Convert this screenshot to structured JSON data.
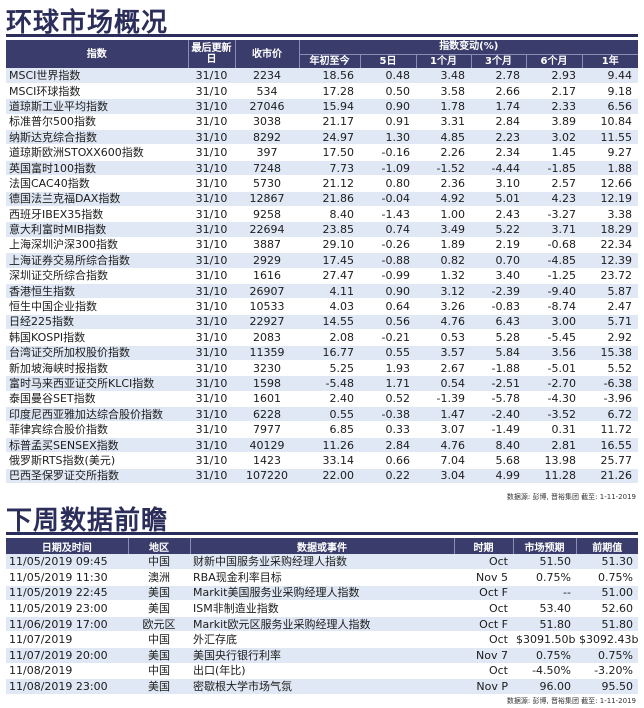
{
  "markets": {
    "title": "环球市场概况",
    "headers": {
      "index": "指数",
      "last_update": "最后更新日",
      "close": "收市价",
      "change_group": "指数变动(%)",
      "ytd": "年初至今",
      "d5": "5日",
      "m1": "1个月",
      "m3": "3个月",
      "m6": "6个月",
      "y1": "1年"
    },
    "rows": [
      {
        "name": "MSCI世界指数",
        "date": "31/10",
        "close": "2234",
        "ytd": "18.56",
        "d5": "0.48",
        "m1": "3.48",
        "m3": "2.78",
        "m6": "2.93",
        "y1": "9.44"
      },
      {
        "name": "MSCI环球指数",
        "date": "31/10",
        "close": "534",
        "ytd": "17.28",
        "d5": "0.50",
        "m1": "3.58",
        "m3": "2.66",
        "m6": "2.17",
        "y1": "9.18"
      },
      {
        "name": "道琼斯工业平均指数",
        "date": "31/10",
        "close": "27046",
        "ytd": "15.94",
        "d5": "0.90",
        "m1": "1.78",
        "m3": "1.74",
        "m6": "2.33",
        "y1": "6.56"
      },
      {
        "name": "标准普尔500指数",
        "date": "31/10",
        "close": "3038",
        "ytd": "21.17",
        "d5": "0.91",
        "m1": "3.31",
        "m3": "2.84",
        "m6": "3.89",
        "y1": "10.84"
      },
      {
        "name": "纳斯达克综合指数",
        "date": "31/10",
        "close": "8292",
        "ytd": "24.97",
        "d5": "1.30",
        "m1": "4.85",
        "m3": "2.23",
        "m6": "3.02",
        "y1": "11.55"
      },
      {
        "name": "道琼斯欧洲STOXX600指数",
        "date": "31/10",
        "close": "397",
        "ytd": "17.50",
        "d5": "-0.16",
        "m1": "2.26",
        "m3": "2.34",
        "m6": "1.45",
        "y1": "9.27"
      },
      {
        "name": "英国富时100指数",
        "date": "31/10",
        "close": "7248",
        "ytd": "7.73",
        "d5": "-1.09",
        "m1": "-1.52",
        "m3": "-4.44",
        "m6": "-1.85",
        "y1": "1.88"
      },
      {
        "name": "法国CAC40指数",
        "date": "31/10",
        "close": "5730",
        "ytd": "21.12",
        "d5": "0.80",
        "m1": "2.36",
        "m3": "3.10",
        "m6": "2.57",
        "y1": "12.66"
      },
      {
        "name": "德国法兰克福DAX指数",
        "date": "31/10",
        "close": "12867",
        "ytd": "21.86",
        "d5": "-0.04",
        "m1": "4.92",
        "m3": "5.01",
        "m6": "4.23",
        "y1": "12.19"
      },
      {
        "name": "西班牙IBEX35指数",
        "date": "31/10",
        "close": "9258",
        "ytd": "8.40",
        "d5": "-1.43",
        "m1": "1.00",
        "m3": "2.43",
        "m6": "-3.27",
        "y1": "3.38"
      },
      {
        "name": "意大利富时MIB指数",
        "date": "31/10",
        "close": "22694",
        "ytd": "23.85",
        "d5": "0.74",
        "m1": "3.49",
        "m3": "5.22",
        "m6": "3.71",
        "y1": "18.29"
      },
      {
        "name": "上海深圳沪深300指数",
        "date": "31/10",
        "close": "3887",
        "ytd": "29.10",
        "d5": "-0.26",
        "m1": "1.89",
        "m3": "2.19",
        "m6": "-0.68",
        "y1": "22.34"
      },
      {
        "name": "上海证券交易所综合指数",
        "date": "31/10",
        "close": "2929",
        "ytd": "17.45",
        "d5": "-0.88",
        "m1": "0.82",
        "m3": "0.70",
        "m6": "-4.85",
        "y1": "12.39"
      },
      {
        "name": "深圳证交所综合指数",
        "date": "31/10",
        "close": "1616",
        "ytd": "27.47",
        "d5": "-0.99",
        "m1": "1.32",
        "m3": "3.40",
        "m6": "-1.25",
        "y1": "23.72"
      },
      {
        "name": "香港恒生指数",
        "date": "31/10",
        "close": "26907",
        "ytd": "4.11",
        "d5": "0.90",
        "m1": "3.12",
        "m3": "-2.39",
        "m6": "-9.40",
        "y1": "5.87"
      },
      {
        "name": "恒生中国企业指数",
        "date": "31/10",
        "close": "10533",
        "ytd": "4.03",
        "d5": "0.64",
        "m1": "3.26",
        "m3": "-0.83",
        "m6": "-8.74",
        "y1": "2.47"
      },
      {
        "name": "日经225指数",
        "date": "31/10",
        "close": "22927",
        "ytd": "14.55",
        "d5": "0.56",
        "m1": "4.76",
        "m3": "6.43",
        "m6": "3.00",
        "y1": "5.71"
      },
      {
        "name": "韩国KOSPI指数",
        "date": "31/10",
        "close": "2083",
        "ytd": "2.08",
        "d5": "-0.21",
        "m1": "0.53",
        "m3": "5.28",
        "m6": "-5.45",
        "y1": "2.92"
      },
      {
        "name": "台湾证交所加权股价指数",
        "date": "31/10",
        "close": "11359",
        "ytd": "16.77",
        "d5": "0.55",
        "m1": "3.57",
        "m3": "5.84",
        "m6": "3.56",
        "y1": "15.38"
      },
      {
        "name": "新加坡海峡时报指数",
        "date": "31/10",
        "close": "3230",
        "ytd": "5.25",
        "d5": "1.93",
        "m1": "2.67",
        "m3": "-1.88",
        "m6": "-5.01",
        "y1": "5.52"
      },
      {
        "name": "富时马来西亚证交所KLCI指数",
        "date": "31/10",
        "close": "1598",
        "ytd": "-5.48",
        "d5": "1.71",
        "m1": "0.54",
        "m3": "-2.51",
        "m6": "-2.70",
        "y1": "-6.38"
      },
      {
        "name": "泰国曼谷SET指数",
        "date": "31/10",
        "close": "1601",
        "ytd": "2.40",
        "d5": "0.52",
        "m1": "-1.39",
        "m3": "-5.78",
        "m6": "-4.30",
        "y1": "-3.96"
      },
      {
        "name": "印度尼西亚雅加达综合股价指数",
        "date": "31/10",
        "close": "6228",
        "ytd": "0.55",
        "d5": "-0.38",
        "m1": "1.47",
        "m3": "-2.40",
        "m6": "-3.52",
        "y1": "6.72"
      },
      {
        "name": "菲律宾综合股价指数",
        "date": "31/10",
        "close": "7977",
        "ytd": "6.85",
        "d5": "0.33",
        "m1": "3.07",
        "m3": "-1.49",
        "m6": "0.31",
        "y1": "11.72"
      },
      {
        "name": "标普孟买SENSEX指数",
        "date": "31/10",
        "close": "40129",
        "ytd": "11.26",
        "d5": "2.84",
        "m1": "4.76",
        "m3": "8.40",
        "m6": "2.81",
        "y1": "16.55"
      },
      {
        "name": "俄罗斯RTS指数(美元)",
        "date": "31/10",
        "close": "1423",
        "ytd": "33.14",
        "d5": "0.66",
        "m1": "7.04",
        "m3": "5.68",
        "m6": "13.98",
        "y1": "25.77"
      },
      {
        "name": "巴西圣保罗证交所指数",
        "date": "31/10",
        "close": "107220",
        "ytd": "22.00",
        "d5": "0.22",
        "m1": "3.04",
        "m3": "4.99",
        "m6": "11.28",
        "y1": "21.26"
      }
    ],
    "source": "数据源: 彭博, 晋裕集团 截至: 1-11-2019"
  },
  "calendar": {
    "title": "下周数据前瞻",
    "headers": {
      "datetime": "日期及时间",
      "region": "地区",
      "event": "数据或事件",
      "period": "时期",
      "forecast": "市场预期",
      "previous": "前期值"
    },
    "rows": [
      {
        "datetime": "11/05/2019 09:45",
        "region": "中国",
        "event": "财新中国服务业采购经理人指数",
        "period": "Oct",
        "forecast": "51.50",
        "previous": "51.30"
      },
      {
        "datetime": "11/05/2019 11:30",
        "region": "澳洲",
        "event": "RBA现金利率目标",
        "period": "Nov 5",
        "forecast": "0.75%",
        "previous": "0.75%"
      },
      {
        "datetime": "11/05/2019 22:45",
        "region": "美国",
        "event": "Markit美国服务业采购经理人指数",
        "period": "Oct F",
        "forecast": "--",
        "previous": "51.00"
      },
      {
        "datetime": "11/05/2019 23:00",
        "region": "美国",
        "event": "ISM非制造业指数",
        "period": "Oct",
        "forecast": "53.40",
        "previous": "52.60"
      },
      {
        "datetime": "11/06/2019 17:00",
        "region": "欧元区",
        "event": "Markit欧元区服务业采购经理人指数",
        "period": "Oct F",
        "forecast": "51.80",
        "previous": "51.80"
      },
      {
        "datetime": "11/07/2019",
        "region": "中国",
        "event": "外汇存底",
        "period": "Oct",
        "forecast": "$3091.50b",
        "previous": "$3092.43b"
      },
      {
        "datetime": "11/07/2019 20:00",
        "region": "美国",
        "event": "美国央行银行利率",
        "period": "Nov 7",
        "forecast": "0.75%",
        "previous": "0.75%"
      },
      {
        "datetime": "11/08/2019",
        "region": "中国",
        "event": "出口(年比)",
        "period": "Oct",
        "forecast": "-4.50%",
        "previous": "-3.20%"
      },
      {
        "datetime": "11/08/2019 23:00",
        "region": "美国",
        "event": "密歇根大学市场气氛",
        "period": "Nov P",
        "forecast": "96.00",
        "previous": "95.50"
      }
    ],
    "source": "数据源: 彭博, 晋裕集团 截至: 1-11-2019"
  }
}
